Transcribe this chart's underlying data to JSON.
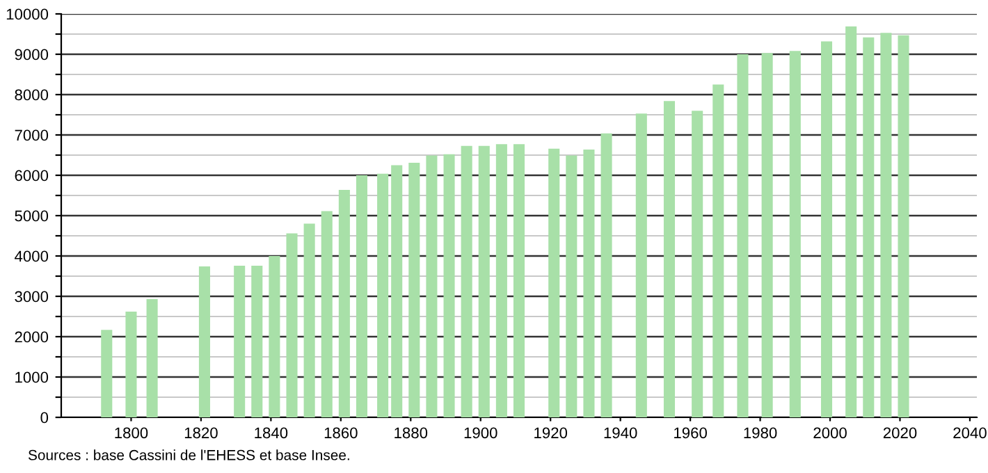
{
  "chart_data": {
    "type": "bar",
    "x": [
      1793,
      1800,
      1806,
      1821,
      1831,
      1836,
      1841,
      1846,
      1851,
      1856,
      1861,
      1866,
      1872,
      1876,
      1881,
      1886,
      1891,
      1896,
      1901,
      1906,
      1911,
      1921,
      1926,
      1931,
      1936,
      1946,
      1954,
      1962,
      1968,
      1975,
      1982,
      1990,
      1999,
      2006,
      2011,
      2016,
      2021
    ],
    "values": [
      2170,
      2620,
      2930,
      3740,
      3760,
      3760,
      4000,
      4560,
      4800,
      5110,
      5640,
      6000,
      6040,
      6250,
      6310,
      6490,
      6520,
      6730,
      6730,
      6770,
      6770,
      6660,
      6490,
      6640,
      7040,
      7530,
      7840,
      7600,
      8250,
      9000,
      9030,
      9080,
      9320,
      9690,
      9420,
      9530,
      9470
    ],
    "color": "#a8e0a8",
    "xlim": [
      1780,
      2042
    ],
    "xticks": [
      1800,
      1820,
      1840,
      1860,
      1880,
      1900,
      1920,
      1940,
      1960,
      1980,
      2000,
      2020,
      2040
    ],
    "ylim": [
      0,
      10000
    ],
    "yticks": [
      0,
      {
        "value": 500,
        "label": null
      },
      1000,
      {
        "value": 1500,
        "label": null
      },
      2000,
      {
        "value": 2500,
        "label": null
      },
      3000,
      {
        "value": 3500,
        "label": null
      },
      4000,
      {
        "value": 4500,
        "label": null
      },
      5000,
      {
        "value": 5500,
        "label": null
      },
      6000,
      {
        "value": 6500,
        "label": null
      },
      7000,
      {
        "value": 7500,
        "label": null
      },
      8000,
      {
        "value": 8500,
        "label": null
      },
      9000,
      {
        "value": 9500,
        "label": null
      },
      10000
    ],
    "grid": "y",
    "annotations": [
      "Sources : base Cassini de l'EHESS et base Insee."
    ]
  }
}
